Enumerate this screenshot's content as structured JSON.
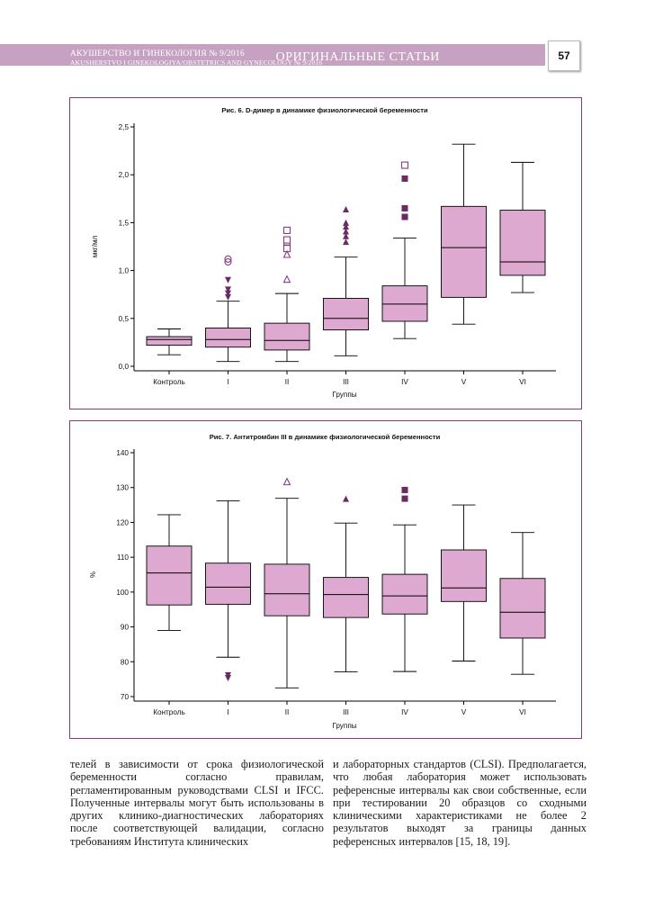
{
  "header": {
    "journal_ru": "АКУШЕРСТВО И ГИНЕКОЛОГИЯ № 9/2016",
    "journal_en": "AKUSHERSTVO I GINEKOLOGIYA/OBSTETRICS AND GYNECOLOGY № 9/2016",
    "section": "ОРИГИНАЛЬНЫЕ СТАТЬИ",
    "page_number": "57"
  },
  "colors": {
    "header_band": "#c6a1c2",
    "box_light": "#dea9d1",
    "box_dark": "#c793bf",
    "marker": "#6b2a64",
    "frame": "#8b3a80"
  },
  "figures": {
    "fig6": {
      "caption": "Рис. 6. D-димер в динамике физиологической беременности"
    },
    "fig7": {
      "caption": "Рис. 7. Антитромбин III  в динамике физиологической беременности"
    }
  },
  "chart_data": [
    {
      "type": "box",
      "title": "Рис. 6. D-димер в динамике физиологической беременности",
      "xlabel": "Группы",
      "ylabel": "мкг/мл",
      "ylim": [
        0,
        2.5
      ],
      "yticks": [
        "0,0",
        "0,5",
        "1,0",
        "1,5",
        "2,0",
        "2,5"
      ],
      "categories": [
        "Контроль",
        "I",
        "II",
        "III",
        "IV",
        "V",
        "VI"
      ],
      "boxes": [
        {
          "group": "Контроль",
          "min": 0.12,
          "q1": 0.22,
          "median": 0.28,
          "q3": 0.31,
          "max": 0.39
        },
        {
          "group": "I",
          "min": 0.05,
          "q1": 0.2,
          "median": 0.28,
          "q3": 0.4,
          "max": 0.68
        },
        {
          "group": "II",
          "min": 0.05,
          "q1": 0.17,
          "median": 0.27,
          "q3": 0.45,
          "max": 0.76
        },
        {
          "group": "III",
          "min": 0.11,
          "q1": 0.38,
          "median": 0.5,
          "q3": 0.71,
          "max": 1.14
        },
        {
          "group": "IV",
          "min": 0.29,
          "q1": 0.47,
          "median": 0.65,
          "q3": 0.84,
          "max": 1.34
        },
        {
          "group": "V",
          "min": 0.44,
          "q1": 0.72,
          "median": 1.24,
          "q3": 1.67,
          "max": 2.32
        },
        {
          "group": "VI",
          "min": 0.77,
          "q1": 0.95,
          "median": 1.09,
          "q3": 1.63,
          "max": 2.13
        }
      ],
      "outliers": [
        {
          "group": "I",
          "marker": "circle-open",
          "values": [
            1.09,
            1.12
          ]
        },
        {
          "group": "I",
          "marker": "triangle-down-filled",
          "values": [
            0.72,
            0.76,
            0.8,
            0.9
          ]
        },
        {
          "group": "II",
          "marker": "square-open",
          "values": [
            1.23,
            1.3,
            1.32,
            1.42
          ]
        },
        {
          "group": "II",
          "marker": "triangle-open",
          "values": [
            0.91,
            1.17
          ]
        },
        {
          "group": "III",
          "marker": "triangle-filled",
          "values": [
            1.3,
            1.36,
            1.41,
            1.46,
            1.5,
            1.64
          ]
        },
        {
          "group": "IV",
          "marker": "square-open",
          "values": [
            2.1
          ]
        },
        {
          "group": "IV",
          "marker": "square-filled",
          "values": [
            1.56,
            1.65,
            1.96
          ]
        }
      ]
    },
    {
      "type": "box",
      "title": "Рис. 7. Антитромбин III  в динамике физиологической беременности",
      "xlabel": "Группы",
      "ylabel": "%",
      "ylim": [
        70,
        140
      ],
      "yticks": [
        "70",
        "80",
        "90",
        "100",
        "110",
        "120",
        "130",
        "140"
      ],
      "categories": [
        "Контроль",
        "I",
        "II",
        "III",
        "IV",
        "V",
        "VI"
      ],
      "boxes": [
        {
          "group": "Контроль",
          "min": 89,
          "q1": 96.3,
          "median": 105.5,
          "q3": 113.2,
          "max": 122.2
        },
        {
          "group": "I",
          "min": 81.3,
          "q1": 96.5,
          "median": 101.4,
          "q3": 108.3,
          "max": 126.2
        },
        {
          "group": "II",
          "min": 72.5,
          "q1": 93.2,
          "median": 99.5,
          "q3": 108,
          "max": 126.9
        },
        {
          "group": "III",
          "min": 77.1,
          "q1": 92.7,
          "median": 99.3,
          "q3": 104.2,
          "max": 119.8
        },
        {
          "group": "IV",
          "min": 77.2,
          "q1": 93.7,
          "median": 98.9,
          "q3": 105.1,
          "max": 119.3
        },
        {
          "group": "V",
          "min": 80.2,
          "q1": 97.3,
          "median": 101.2,
          "q3": 112.1,
          "max": 125
        },
        {
          "group": "VI",
          "min": 76.4,
          "q1": 86.8,
          "median": 94.2,
          "q3": 103.9,
          "max": 117.1
        }
      ],
      "outliers": [
        {
          "group": "I",
          "marker": "triangle-down-filled",
          "values": [
            75.3,
            76.1
          ]
        },
        {
          "group": "II",
          "marker": "triangle-open",
          "values": [
            131.7
          ]
        },
        {
          "group": "III",
          "marker": "triangle-filled",
          "values": [
            126.8
          ]
        },
        {
          "group": "IV",
          "marker": "square-filled",
          "values": [
            126.8,
            129.3
          ]
        }
      ]
    }
  ],
  "body_text": {
    "col1": "телей в зависимости от срока физиологической беременности согласно правилам, регламентированным руководствами CLSI и IFCC. Полученные интервалы могут быть использованы в других клинико-диагностических лабораториях после соответствующей валидации, согласно требованиям Института клинических",
    "col2": "и лабораторных стандартов (CLSI). Предполагается, что любая лаборатория может использовать референсные интервалы как свои собственные, если при тестировании 20 образцов со сходными клиническими характеристиками не более 2 результатов выходят за границы данных референсных интервалов [15, 18, 19]."
  }
}
